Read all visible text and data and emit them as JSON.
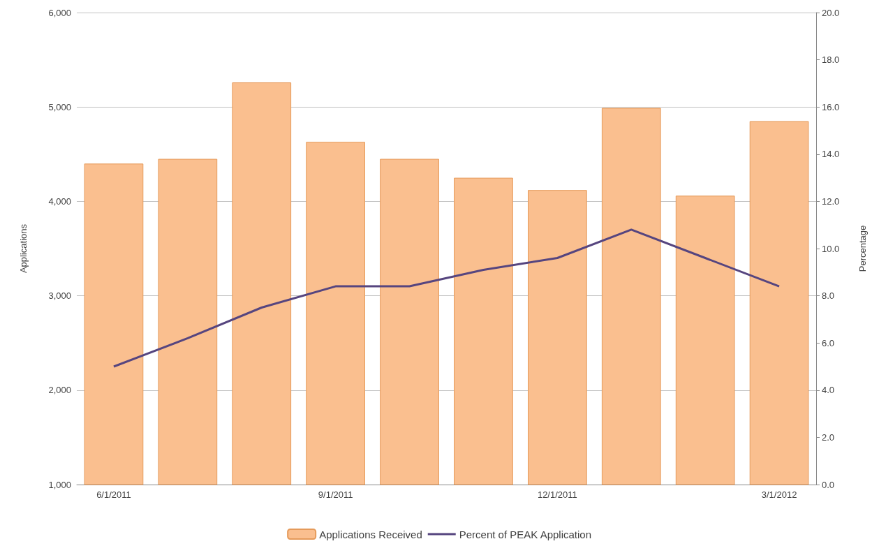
{
  "chart_data": {
    "type": "bar",
    "ylabel": "Applications",
    "y2label": "Percentage",
    "categories": [
      "6/1/2011",
      null,
      null,
      "9/1/2011",
      null,
      null,
      "12/1/2011",
      null,
      null,
      "3/1/2012"
    ],
    "series": [
      {
        "name": "Applications Received",
        "color": "#fabf8f",
        "values": [
          4400,
          4450,
          5260,
          4630,
          4450,
          4250,
          4120,
          4990,
          4060,
          4850
        ]
      },
      {
        "name": "Percent of PEAK Application",
        "type": "line",
        "axis": "y2",
        "color": "#56457f",
        "values": [
          5.0,
          6.2,
          7.5,
          8.4,
          8.4,
          9.1,
          9.6,
          10.8,
          9.6,
          8.4
        ]
      }
    ],
    "ylim": [
      1000,
      6000
    ],
    "yticks": [
      {
        "value": 1000,
        "label": "1,000"
      },
      {
        "value": 2000,
        "label": "2,000"
      },
      {
        "value": 3000,
        "label": "3,000"
      },
      {
        "value": 4000,
        "label": "4,000"
      },
      {
        "value": 5000,
        "label": "5,000"
      },
      {
        "value": 6000,
        "label": "6,000"
      }
    ],
    "y2lim": [
      0,
      20
    ],
    "y2ticks": [
      {
        "value": 0,
        "label": "0.0"
      },
      {
        "value": 2,
        "label": "2.0"
      },
      {
        "value": 4,
        "label": "4.0"
      },
      {
        "value": 6,
        "label": "6.0"
      },
      {
        "value": 8,
        "label": "8.0"
      },
      {
        "value": 10,
        "label": "10.0"
      },
      {
        "value": 12,
        "label": "12.0"
      },
      {
        "value": 14,
        "label": "14.0"
      },
      {
        "value": 16,
        "label": "16.0"
      },
      {
        "value": 18,
        "label": "18.0"
      },
      {
        "value": 20,
        "label": "20.0"
      }
    ],
    "grid": "y",
    "legend": "bottom",
    "marker": "none",
    "line_style": "solid"
  }
}
